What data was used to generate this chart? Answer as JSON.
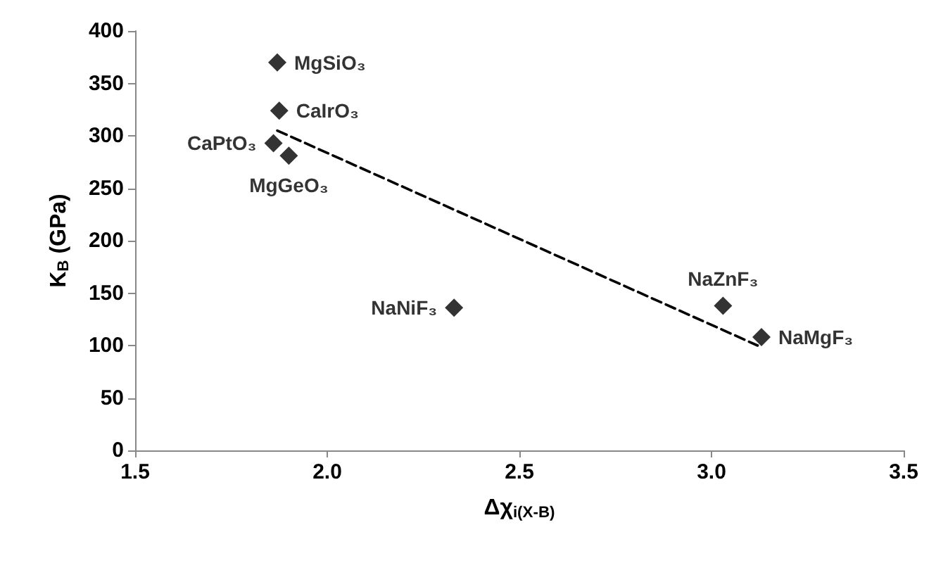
{
  "chart_data": {
    "type": "scatter",
    "xlabel": "Δχ$_{i(X-B)}$",
    "ylabel": "K$_{B}$ (GPa)",
    "x": [
      1.87,
      1.875,
      1.86,
      1.9,
      2.33,
      3.03,
      3.13
    ],
    "series": [
      {
        "color": "#000000",
        "values": [
          370,
          324,
          293,
          281,
          136,
          138,
          108
        ],
        "marker": "diamond"
      },
      {
        "type": "line",
        "x": [
          1.87,
          3.12
        ],
        "values": [
          305,
          100
        ],
        "color": "#000000",
        "line_style": "dashed",
        "marker": "none"
      }
    ],
    "annotations": [
      {
        "text": "MgSiO₃",
        "x": 1.87,
        "y": 370
      },
      {
        "text": "CaIrO₃",
        "x": 1.875,
        "y": 324
      },
      {
        "text": "CaPtO₃",
        "x": 1.86,
        "y": 293
      },
      {
        "text": "MgGeO₃",
        "x": 1.9,
        "y": 281
      },
      {
        "text": "NaNiF₃",
        "x": 2.33,
        "y": 136
      },
      {
        "text": "NaZnF₃",
        "x": 3.03,
        "y": 138
      },
      {
        "text": "NaMgF₃",
        "x": 3.13,
        "y": 108
      }
    ],
    "xlim": [
      1.5,
      3.5
    ],
    "xticks": [
      {
        "value": 1.5,
        "label": "1.5"
      },
      {
        "value": 2,
        "label": "2.0"
      },
      {
        "value": 2.5,
        "label": "2.5"
      },
      {
        "value": 3,
        "label": "3.0"
      },
      {
        "value": 3.5,
        "label": "3.5"
      }
    ],
    "ylim": [
      0,
      400
    ],
    "yticks": [
      0,
      50,
      100,
      150,
      200,
      250,
      300,
      350,
      400
    ],
    "grid": false
  }
}
